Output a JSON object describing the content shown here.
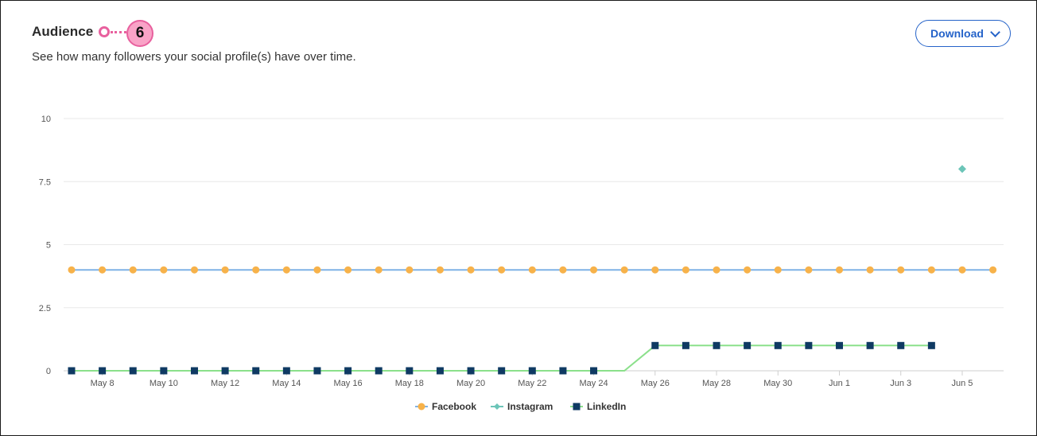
{
  "header": {
    "title": "Audience",
    "subtitle": "See how many followers your social profile(s) have over time.",
    "callout_number": "6",
    "download_label": "Download"
  },
  "chart_data": {
    "type": "line",
    "title": "",
    "xlabel": "",
    "ylabel": "",
    "ylim": [
      0,
      10
    ],
    "yticks": [
      "0",
      "2.5",
      "5",
      "7.5",
      "10"
    ],
    "grid": true,
    "legend_position": "bottom-center",
    "x": [
      "May 7",
      "May 8",
      "May 9",
      "May 10",
      "May 11",
      "May 12",
      "May 13",
      "May 14",
      "May 15",
      "May 16",
      "May 17",
      "May 18",
      "May 19",
      "May 20",
      "May 21",
      "May 22",
      "May 23",
      "May 24",
      "May 25",
      "May 26",
      "May 27",
      "May 28",
      "May 29",
      "May 30",
      "May 31",
      "Jun 1",
      "Jun 2",
      "Jun 3",
      "Jun 4",
      "Jun 5",
      "Jun 6"
    ],
    "xtick_labels": [
      "May 8",
      "May 10",
      "May 12",
      "May 14",
      "May 16",
      "May 18",
      "May 20",
      "May 22",
      "May 24",
      "May 26",
      "May 28",
      "May 30",
      "Jun 1",
      "Jun 3",
      "Jun 5"
    ],
    "series": [
      {
        "name": "Facebook",
        "line_color": "#7fb2e5",
        "marker_color": "#f7b24a",
        "marker": "circle",
        "values": [
          4,
          4,
          4,
          4,
          4,
          4,
          4,
          4,
          4,
          4,
          4,
          4,
          4,
          4,
          4,
          4,
          4,
          4,
          4,
          4,
          4,
          4,
          4,
          4,
          4,
          4,
          4,
          4,
          4,
          4,
          4
        ]
      },
      {
        "name": "Instagram",
        "line_color": "#6cc5b8",
        "marker_color": "#6cc5b8",
        "marker": "diamond",
        "values": [
          null,
          null,
          null,
          null,
          null,
          null,
          null,
          null,
          null,
          null,
          null,
          null,
          null,
          null,
          null,
          null,
          null,
          null,
          null,
          null,
          null,
          null,
          null,
          null,
          null,
          null,
          null,
          null,
          null,
          8,
          null
        ]
      },
      {
        "name": "LinkedIn",
        "line_color": "#8be08b",
        "marker_color": "#0f3a63",
        "marker": "square",
        "values": [
          0,
          0,
          0,
          0,
          0,
          0,
          0,
          0,
          0,
          0,
          0,
          0,
          0,
          0,
          0,
          0,
          0,
          0,
          0,
          1,
          1,
          1,
          1,
          1,
          1,
          1,
          1,
          1,
          1,
          null,
          null
        ],
        "unmarked_indices": [
          18
        ]
      }
    ]
  }
}
